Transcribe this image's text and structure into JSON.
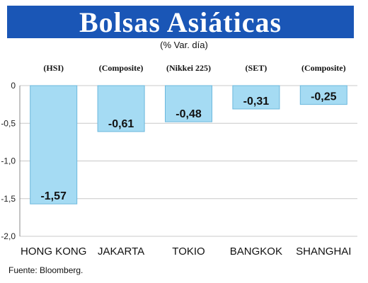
{
  "title": "Bolsas Asiáticas",
  "subtitle": "(% Var. día)",
  "source": "Fuente: Bloomberg.",
  "colors": {
    "title_bg": "#1a56b6",
    "bar": "#a5dbf3",
    "bar_stroke": "#6cb8dd"
  },
  "chart_data": {
    "type": "bar",
    "title": "Bolsas Asiáticas",
    "subtitle": "(% Var. día)",
    "categories": [
      "HONG KONG",
      "JAKARTA",
      "TOKIO",
      "BANGKOK",
      "SHANGHAI"
    ],
    "index_labels": [
      "(HSI)",
      "(Composite)",
      "(Nikkei 225)",
      "(SET)",
      "(Composite)"
    ],
    "values": [
      -1.57,
      -0.61,
      -0.48,
      -0.31,
      -0.25
    ],
    "data_labels": [
      "-1,57",
      "-0,61",
      "-0,48",
      "-0,31",
      "-0,25"
    ],
    "ylim": [
      -2.0,
      0
    ],
    "yticks": [
      0,
      -0.5,
      -1.0,
      -1.5,
      -2.0
    ],
    "ytick_labels": [
      "0",
      "-0,5",
      "-1,0",
      "-1,5",
      "-2,0"
    ],
    "grid": true,
    "xlabel": "",
    "ylabel": ""
  }
}
